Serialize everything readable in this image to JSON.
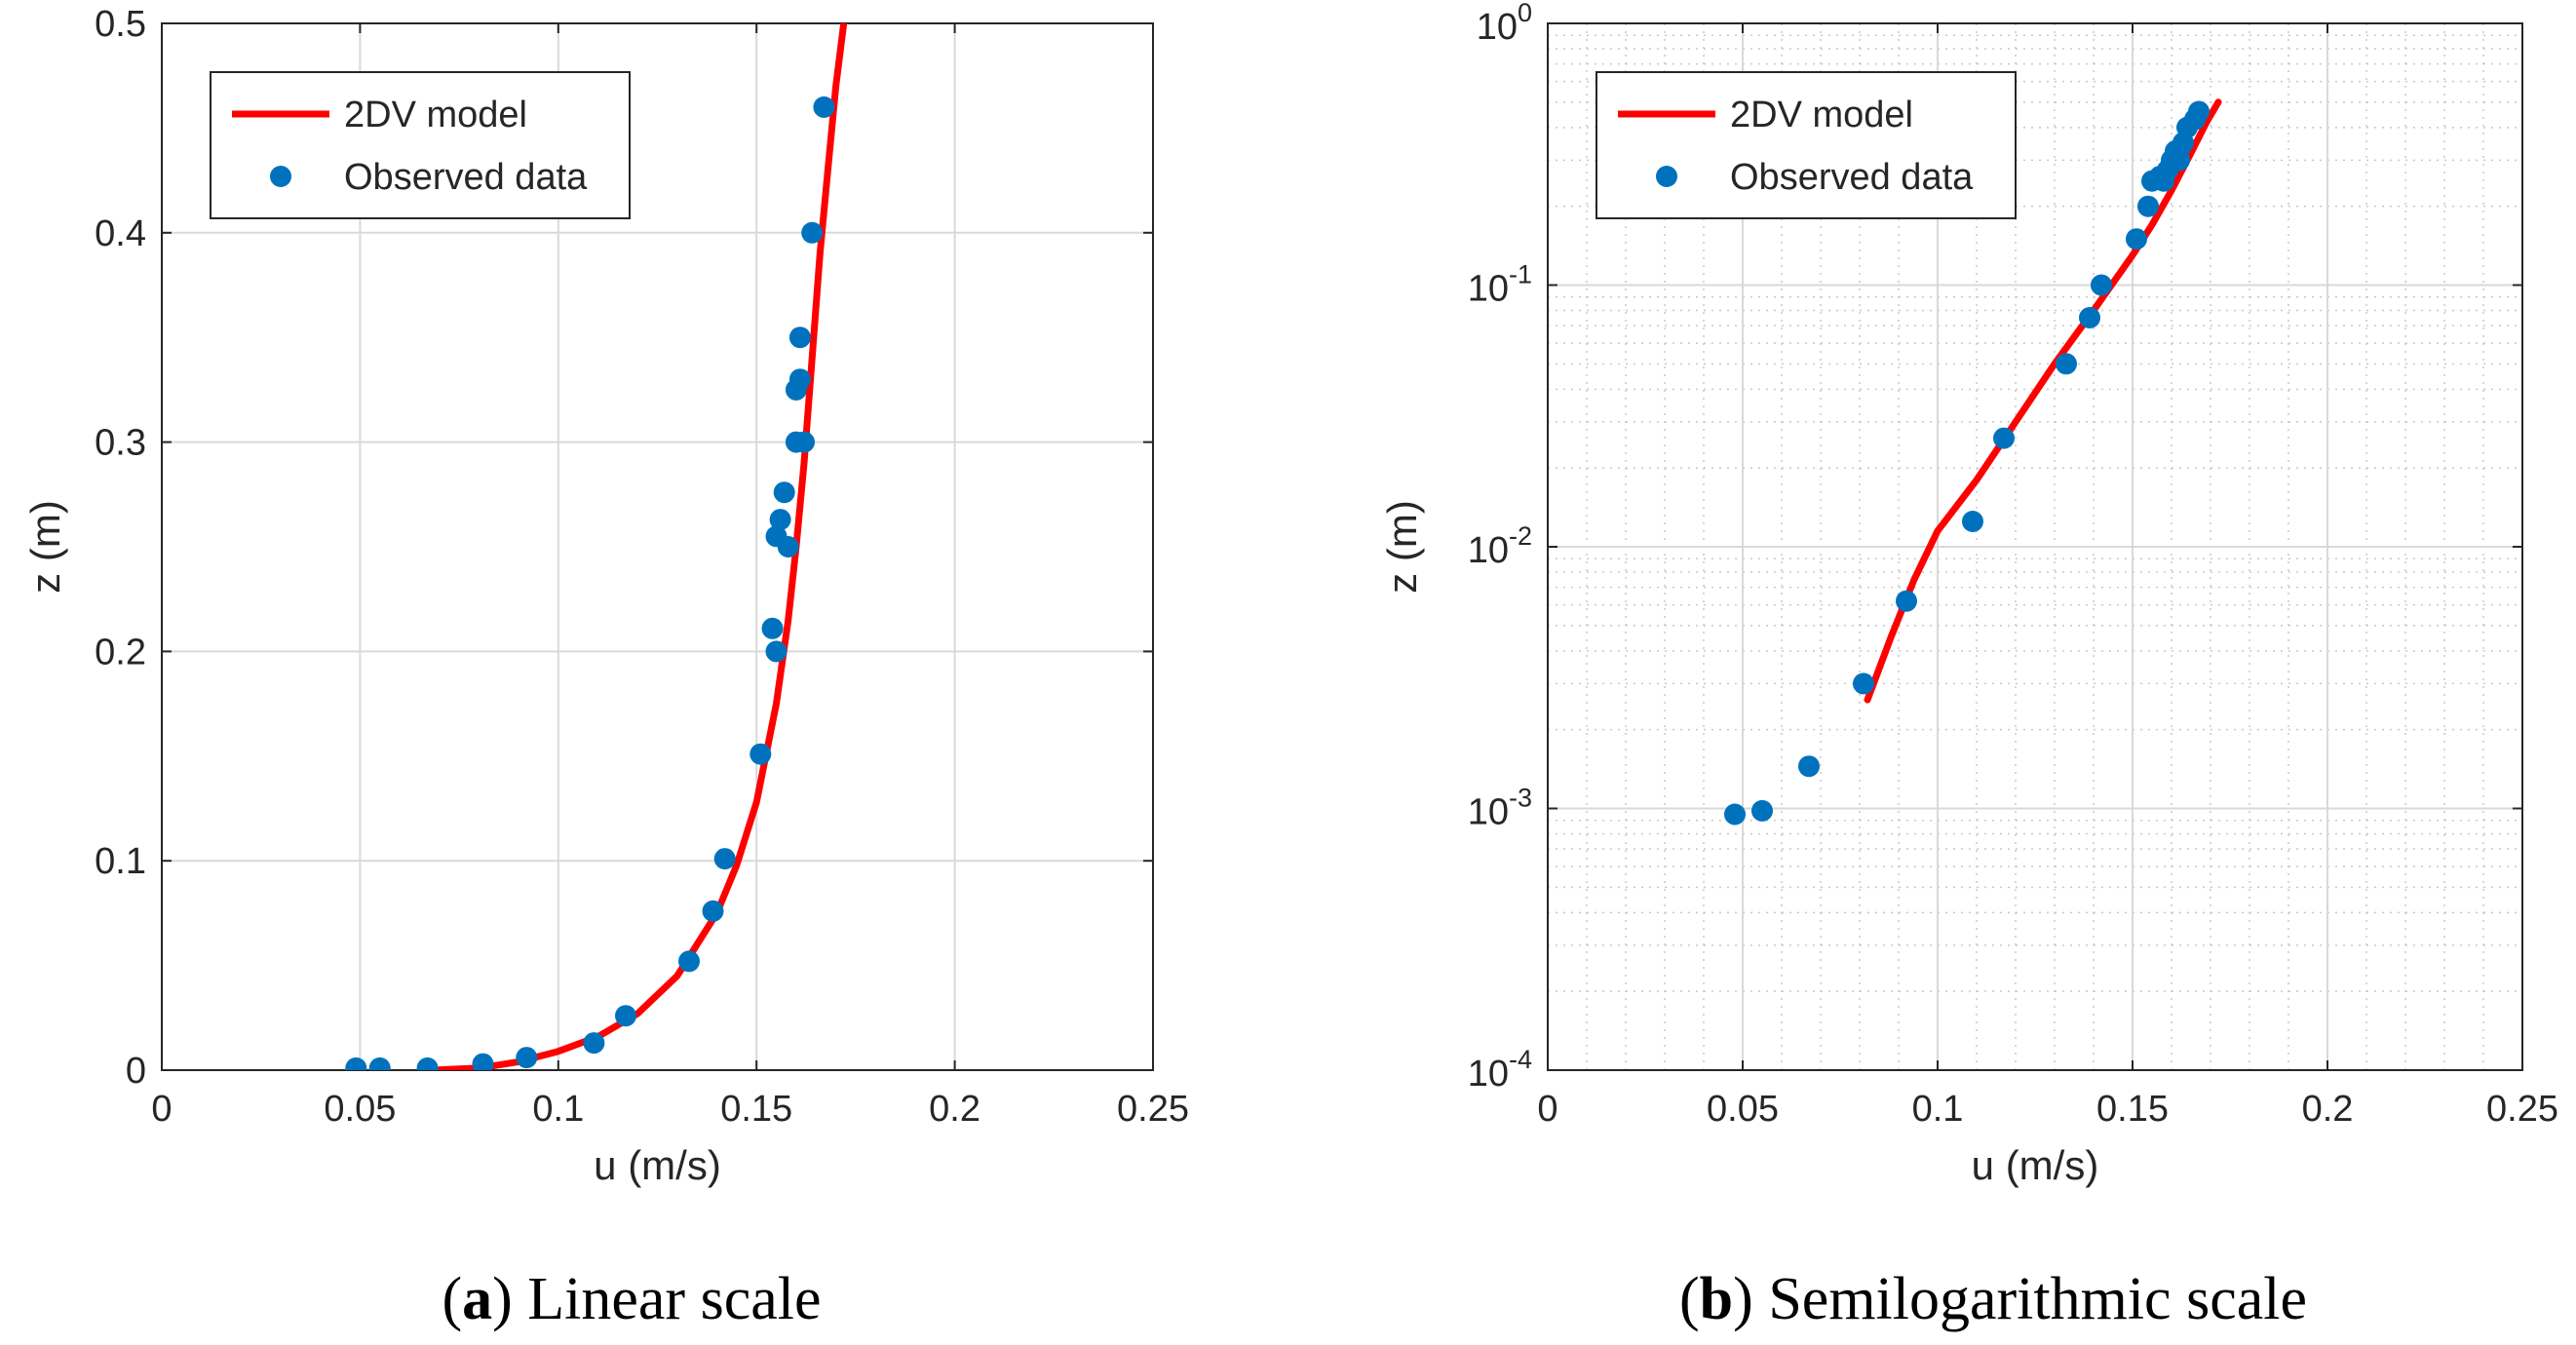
{
  "chart_data": [
    {
      "type": "line",
      "panel": "a",
      "caption_letter": "a",
      "caption_text": "Linear scale",
      "xlabel": "u (m/s)",
      "ylabel": "z (m)",
      "xlim": [
        0,
        0.25
      ],
      "ylim": [
        0,
        0.5
      ],
      "yscale": "linear",
      "x_ticks": [
        0,
        0.05,
        0.1,
        0.15,
        0.2,
        0.25
      ],
      "x_tick_labels": [
        "0",
        "0.05",
        "0.1",
        "0.15",
        "0.2",
        "0.25"
      ],
      "y_ticks": [
        0,
        0.1,
        0.2,
        0.3,
        0.4,
        0.5
      ],
      "y_tick_labels": [
        "0",
        "0.1",
        "0.2",
        "0.3",
        "0.4",
        "0.5"
      ],
      "grid": true,
      "legend_position": "top-left",
      "series": [
        {
          "name": "2DV model",
          "style": "line",
          "color": "#ff0000",
          "points": [
            [
              0.07,
              0.0002
            ],
            [
              0.08,
              0.001
            ],
            [
              0.09,
              0.004
            ],
            [
              0.1,
              0.009
            ],
            [
              0.11,
              0.016
            ],
            [
              0.12,
              0.027
            ],
            [
              0.13,
              0.045
            ],
            [
              0.14,
              0.075
            ],
            [
              0.145,
              0.098
            ],
            [
              0.15,
              0.128
            ],
            [
              0.155,
              0.175
            ],
            [
              0.158,
              0.215
            ],
            [
              0.16,
              0.25
            ],
            [
              0.162,
              0.29
            ],
            [
              0.164,
              0.34
            ],
            [
              0.166,
              0.39
            ],
            [
              0.168,
              0.43
            ],
            [
              0.17,
              0.47
            ],
            [
              0.172,
              0.5
            ]
          ]
        },
        {
          "name": "Observed data",
          "style": "scatter",
          "color": "#0072bd",
          "points": [
            [
              0.049,
              0.001
            ],
            [
              0.055,
              0.001
            ],
            [
              0.067,
              0.001
            ],
            [
              0.081,
              0.003
            ],
            [
              0.092,
              0.006
            ],
            [
              0.109,
              0.013
            ],
            [
              0.117,
              0.026
            ],
            [
              0.133,
              0.052
            ],
            [
              0.139,
              0.076
            ],
            [
              0.142,
              0.101
            ],
            [
              0.151,
              0.151
            ],
            [
              0.154,
              0.211
            ],
            [
              0.155,
              0.2
            ],
            [
              0.155,
              0.255
            ],
            [
              0.156,
              0.263
            ],
            [
              0.157,
              0.276
            ],
            [
              0.158,
              0.25
            ],
            [
              0.16,
              0.3
            ],
            [
              0.16,
              0.325
            ],
            [
              0.161,
              0.33
            ],
            [
              0.162,
              0.3
            ],
            [
              0.161,
              0.35
            ],
            [
              0.164,
              0.4
            ],
            [
              0.167,
              0.46
            ]
          ]
        }
      ]
    },
    {
      "type": "line",
      "panel": "b",
      "caption_letter": "b",
      "caption_text": "Semilogarithmic scale",
      "xlabel": "u (m/s)",
      "ylabel": "z (m)",
      "xlim": [
        0,
        0.25
      ],
      "ylim": [
        0.0001,
        1
      ],
      "yscale": "log",
      "x_ticks": [
        0,
        0.05,
        0.1,
        0.15,
        0.2,
        0.25
      ],
      "x_tick_labels": [
        "0",
        "0.05",
        "0.1",
        "0.15",
        "0.2",
        "0.25"
      ],
      "y_ticks": [
        0.0001,
        0.001,
        0.01,
        0.1,
        1
      ],
      "y_tick_labels": [
        {
          "base": "10",
          "exp": "-4"
        },
        {
          "base": "10",
          "exp": "-3"
        },
        {
          "base": "10",
          "exp": "-2"
        },
        {
          "base": "10",
          "exp": "-1"
        },
        {
          "base": "10",
          "exp": "0"
        }
      ],
      "grid": true,
      "minor_grid": true,
      "legend_position": "top-left",
      "series": [
        {
          "name": "2DV model",
          "style": "line",
          "color": "#ff0000",
          "points": [
            [
              0.082,
              0.0026
            ],
            [
              0.088,
              0.0045
            ],
            [
              0.094,
              0.0075
            ],
            [
              0.1,
              0.0115
            ],
            [
              0.11,
              0.018
            ],
            [
              0.12,
              0.03
            ],
            [
              0.13,
              0.05
            ],
            [
              0.14,
              0.08
            ],
            [
              0.15,
              0.13
            ],
            [
              0.155,
              0.17
            ],
            [
              0.16,
              0.23
            ],
            [
              0.165,
              0.32
            ],
            [
              0.169,
              0.42
            ],
            [
              0.172,
              0.5
            ]
          ]
        },
        {
          "name": "Observed data",
          "style": "scatter",
          "color": "#0072bd",
          "points": [
            [
              0.048,
              0.00095
            ],
            [
              0.055,
              0.00098
            ],
            [
              0.067,
              0.00145
            ],
            [
              0.081,
              0.003
            ],
            [
              0.092,
              0.0062
            ],
            [
              0.109,
              0.0125
            ],
            [
              0.117,
              0.026
            ],
            [
              0.133,
              0.05
            ],
            [
              0.139,
              0.075
            ],
            [
              0.142,
              0.1
            ],
            [
              0.151,
              0.15
            ],
            [
              0.154,
              0.2
            ],
            [
              0.155,
              0.25
            ],
            [
              0.157,
              0.26
            ],
            [
              0.158,
              0.25
            ],
            [
              0.159,
              0.275
            ],
            [
              0.16,
              0.3
            ],
            [
              0.161,
              0.325
            ],
            [
              0.162,
              0.3
            ],
            [
              0.162,
              0.33
            ],
            [
              0.163,
              0.35
            ],
            [
              0.164,
              0.4
            ],
            [
              0.166,
              0.43
            ],
            [
              0.167,
              0.46
            ]
          ]
        }
      ]
    }
  ]
}
